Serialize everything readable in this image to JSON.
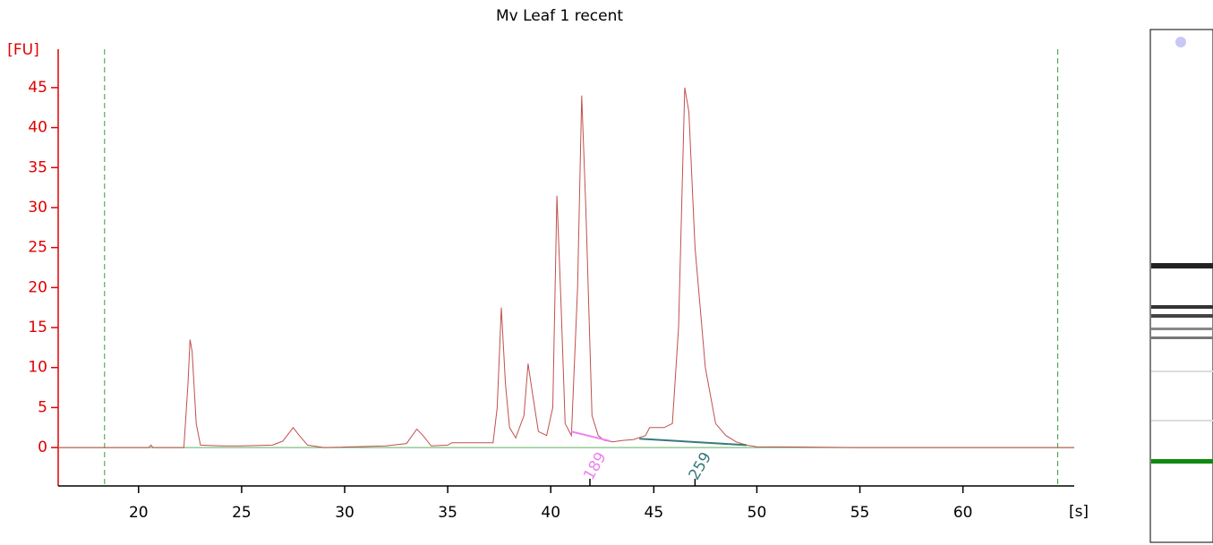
{
  "chart_data": {
    "type": "line",
    "title": "Mv Leaf 1 recent",
    "ylabel": "[FU]",
    "xlabel": "[s]",
    "xlim": [
      16.1,
      65.4
    ],
    "ylim": [
      -4.8,
      49.8
    ],
    "xticks": [
      20,
      25,
      30,
      35,
      40,
      45,
      50,
      55,
      60
    ],
    "yticks": [
      0,
      5,
      10,
      15,
      20,
      25,
      30,
      35,
      40,
      45
    ],
    "color": "#c0504d",
    "baseline": 0,
    "baseline_color": "#7fbf7f",
    "markers": [
      18.35,
      64.6
    ],
    "marker_color": "#3a9a3a",
    "annotations": [
      {
        "label": "189",
        "x": 41.9,
        "color": "#ee82ee",
        "baseline_x": [
          41,
          42.9
        ],
        "baseline_y": [
          2,
          0.8
        ]
      },
      {
        "label": "259",
        "x": 47.0,
        "color": "#3a7a7a",
        "baseline_x": [
          44.3,
          49.5
        ],
        "baseline_y": [
          1.1,
          0.3
        ]
      }
    ],
    "x": [
      16.1,
      20.5,
      20.6,
      20.7,
      22.2,
      22.4,
      22.5,
      22.6,
      22.8,
      23,
      24,
      25,
      26.5,
      27,
      27.5,
      27.8,
      28.2,
      29,
      32,
      33,
      33.5,
      33.8,
      34.2,
      35,
      35.2,
      37.2,
      37.4,
      37.6,
      37.8,
      38,
      38.3,
      38.7,
      38.9,
      39.1,
      39.4,
      39.8,
      40.1,
      40.3,
      40.5,
      40.7,
      41,
      41.3,
      41.5,
      41.7,
      42,
      42.3,
      42.6,
      43,
      43.5,
      44,
      44.6,
      44.8,
      45.5,
      45.9,
      46.2,
      46.5,
      46.7,
      47,
      47.5,
      48,
      48.5,
      49,
      49.5,
      50,
      55,
      60,
      64,
      65.4
    ],
    "values": [
      0,
      0,
      0.3,
      0,
      0,
      8,
      13.5,
      12,
      3,
      0.3,
      0.2,
      0.2,
      0.3,
      0.8,
      2.5,
      1.5,
      0.3,
      0,
      0.2,
      0.5,
      2.3,
      1.5,
      0.2,
      0.3,
      0.6,
      0.6,
      5,
      17.5,
      8,
      2.5,
      1.2,
      4,
      10.5,
      7,
      2,
      1.5,
      5,
      31.5,
      18,
      3,
      1.5,
      20,
      44,
      30,
      4,
      1.5,
      0.9,
      0.7,
      0.9,
      1,
      1.5,
      2.5,
      2.5,
      3,
      15,
      45,
      42,
      25,
      10,
      3,
      1.5,
      0.7,
      0.3,
      0.1,
      0,
      0,
      0,
      0
    ]
  }
}
